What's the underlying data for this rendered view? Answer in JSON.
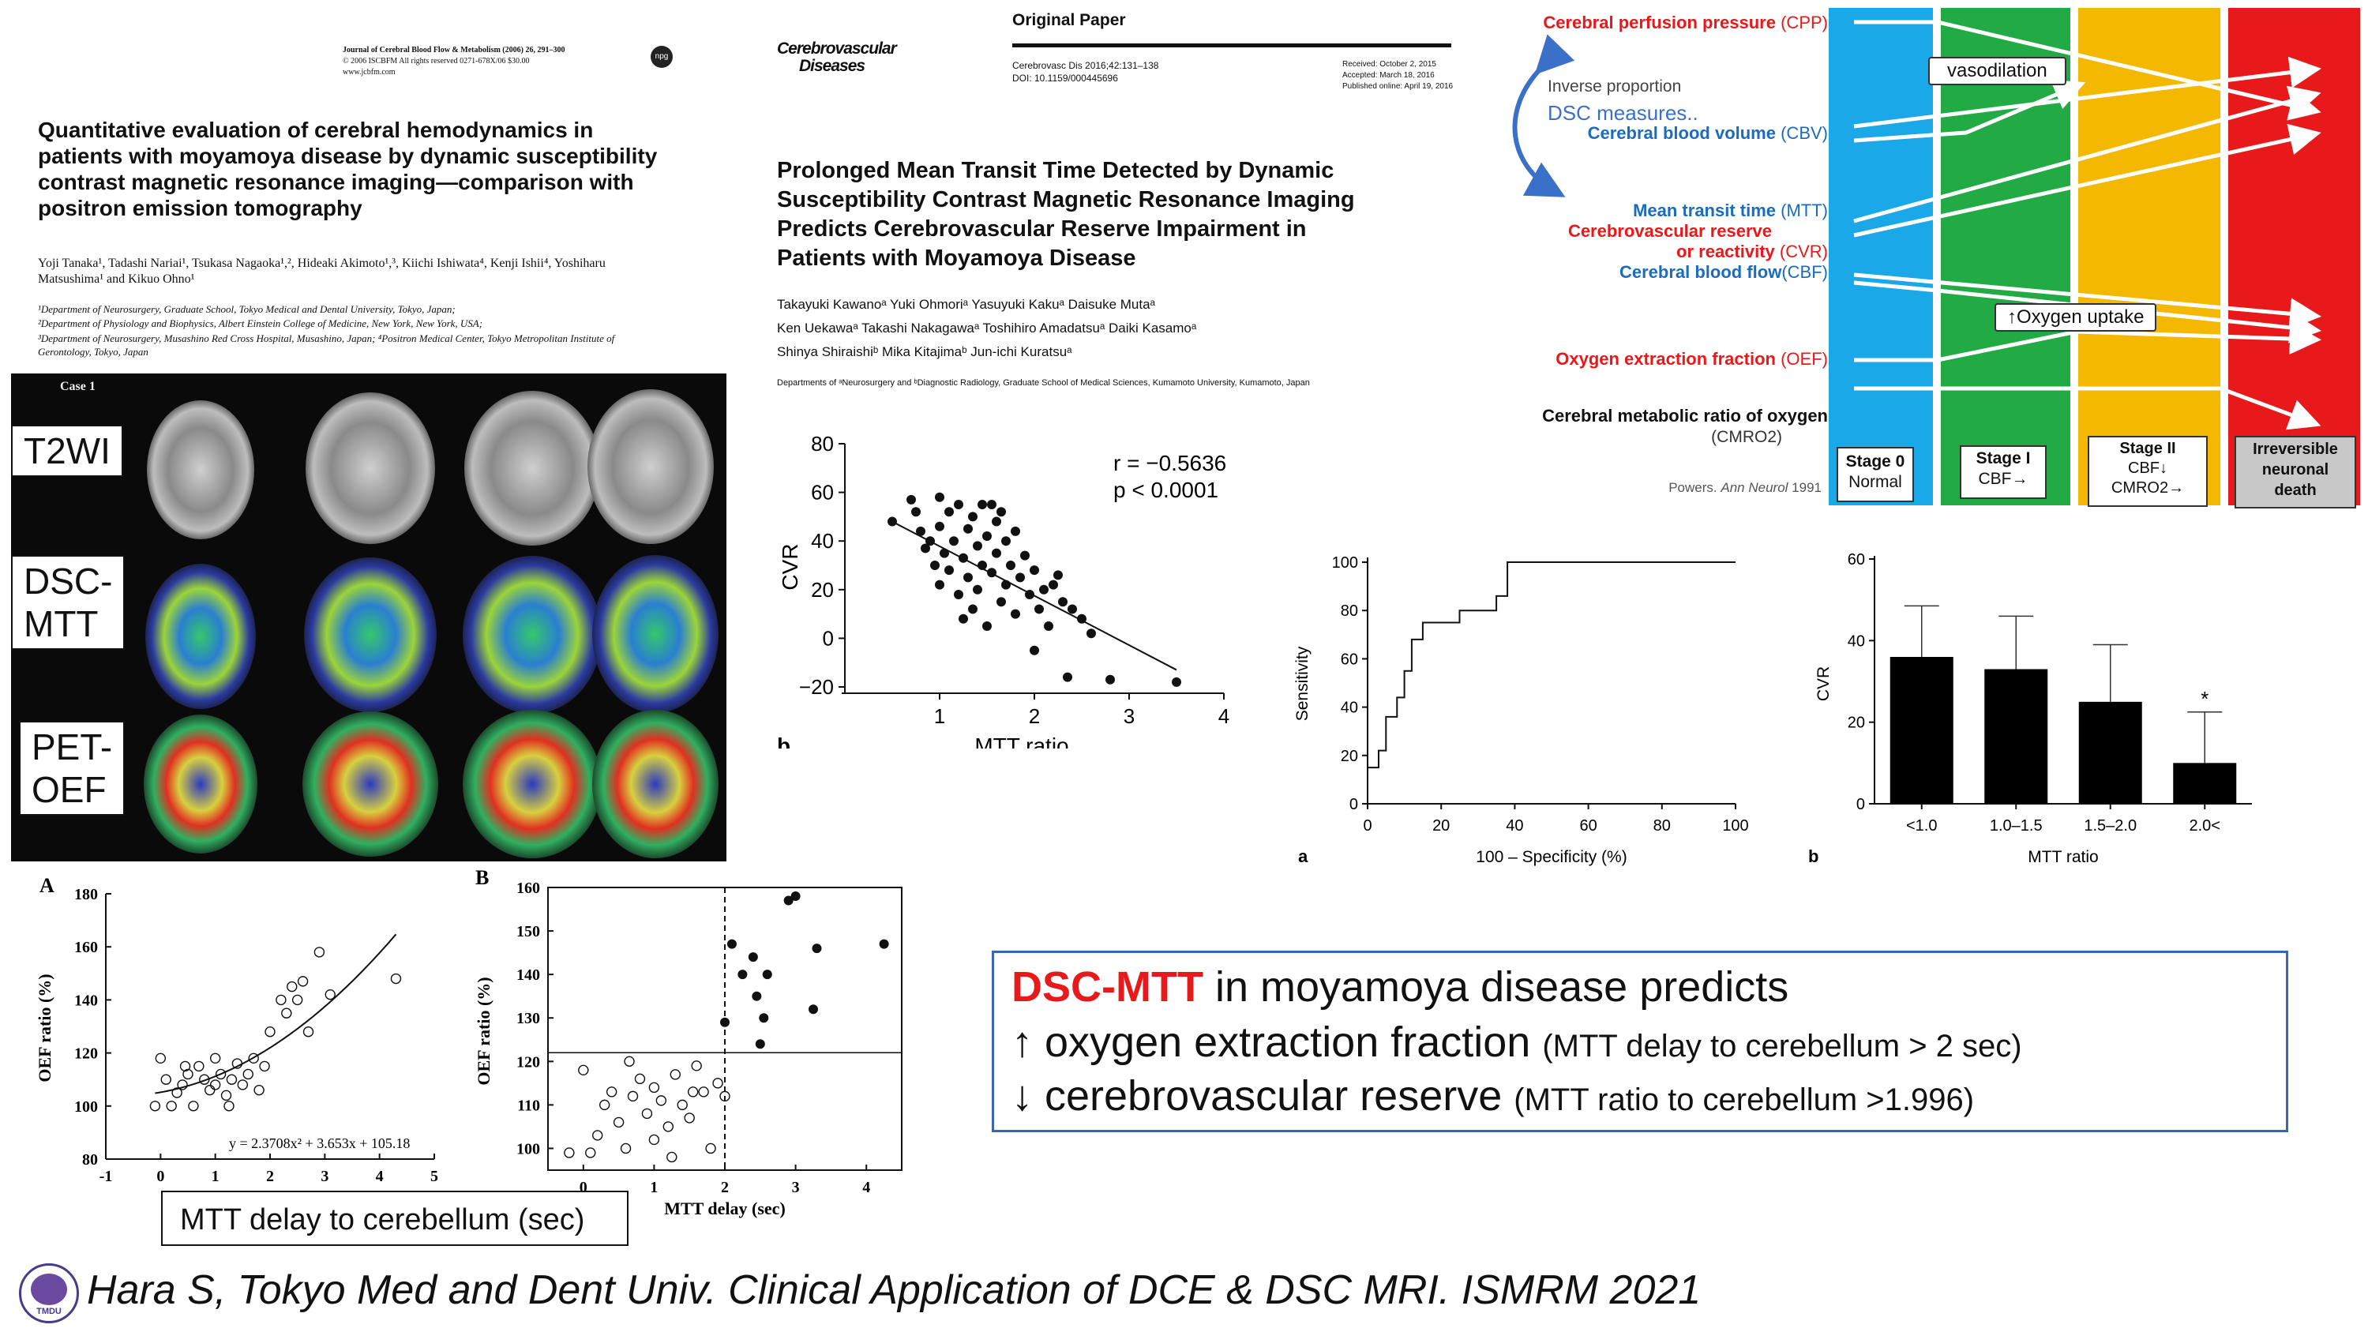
{
  "paper1": {
    "journal_line1": "Journal of Cerebral Blood Flow & Metabolism (2006) 26, 291–300",
    "journal_line2": "© 2006 ISCBFM All rights reserved 0271-678X/06 $30.00",
    "journal_line3": "www.jcbfm.com",
    "title": "Quantitative evaluation of cerebral hemodynamics in patients with moyamoya disease by dynamic susceptibility contrast magnetic resonance imaging—comparison with positron emission tomography",
    "authors": "Yoji Tanaka¹, Tadashi Nariai¹, Tsukasa Nagaoka¹,², Hideaki Akimoto¹,³, Kiichi Ishiwata⁴, Kenji Ishii⁴, Yoshiharu Matsushima¹ and Kikuo Ohno¹",
    "affil1": "¹Department of Neurosurgery, Graduate School, Tokyo Medical and Dental University, Tokyo, Japan;",
    "affil2": "²Department of Physiology and Biophysics, Albert Einstein College of Medicine, New York, New York, USA;",
    "affil3": "³Department of Neurosurgery, Musashino Red Cross Hospital, Musashino, Japan; ⁴Positron Medical Center, Tokyo Metropolitan Institute of Gerontology, Tokyo, Japan"
  },
  "mri": {
    "case_label": "Case 1",
    "row_labels": [
      "T2WI",
      "DSC-\nMTT",
      "PET-\nOEF"
    ]
  },
  "paper2": {
    "journal_name_line1": "Cerebrovascular",
    "journal_name_line2": "Diseases",
    "type": "Original Paper",
    "citation": "Cerebrovasc Dis 2016;42:131–138",
    "doi": "DOI: 10.1159/000445696",
    "received": "Received: October 2, 2015",
    "accepted": "Accepted: March 18, 2016",
    "published": "Published online: April 19, 2016",
    "title": "Prolonged Mean Transit Time Detected by Dynamic Susceptibility Contrast Magnetic Resonance Imaging Predicts Cerebrovascular Reserve Impairment in Patients with Moyamoya Disease",
    "authors_line1": "Takayuki Kawanoᵃ  Yuki Ohmoriᵃ  Yasuyuki Kakuᵃ  Daisuke Mutaᵃ",
    "authors_line2": "Ken Uekawaᵃ  Takashi Nakagawaᵃ  Toshihiro Amadatsuᵃ  Daiki Kasamoᵃ",
    "authors_line3": "Shinya Shiraishiᵇ  Mika Kitajimaᵇ  Jun-ichi Kuratsuᵃ",
    "depts": "Departments of ᵃNeurosurgery and ᵇDiagnostic Radiology, Graduate School of Medical Sciences, Kumamoto University, Kumamoto, Japan"
  },
  "chart_data": [
    {
      "id": "cvr-vs-mtt-ratio",
      "type": "scatter",
      "panel_label": "b",
      "xlabel": "MTT ratio",
      "ylabel": "CVR",
      "xticks": [
        "1",
        "2",
        "3",
        "4"
      ],
      "yticks": [
        "80",
        "60",
        "40",
        "20",
        "0",
        "−20"
      ],
      "xlim": [
        0,
        4
      ],
      "ylim": [
        -20,
        80
      ],
      "stat_r": "r = −0.5636",
      "stat_p": "p < 0.0001",
      "regression": {
        "x0": 0.5,
        "y0": 48,
        "x1": 3.5,
        "y1": -13
      },
      "points": [
        [
          0.5,
          48
        ],
        [
          0.7,
          57
        ],
        [
          0.75,
          52
        ],
        [
          0.8,
          44
        ],
        [
          0.85,
          37
        ],
        [
          0.9,
          40
        ],
        [
          0.95,
          30
        ],
        [
          1.0,
          46
        ],
        [
          1.0,
          22
        ],
        [
          1.05,
          35
        ],
        [
          1.1,
          52
        ],
        [
          1.1,
          28
        ],
        [
          1.15,
          40
        ],
        [
          1.2,
          18
        ],
        [
          1.2,
          55
        ],
        [
          1.25,
          33
        ],
        [
          1.3,
          45
        ],
        [
          1.3,
          25
        ],
        [
          1.35,
          50
        ],
        [
          1.35,
          12
        ],
        [
          1.4,
          38
        ],
        [
          1.4,
          20
        ],
        [
          1.45,
          55
        ],
        [
          1.45,
          30
        ],
        [
          1.5,
          42
        ],
        [
          1.5,
          5
        ],
        [
          1.55,
          27
        ],
        [
          1.6,
          35
        ],
        [
          1.6,
          48
        ],
        [
          1.65,
          15
        ],
        [
          1.7,
          40
        ],
        [
          1.7,
          22
        ],
        [
          1.75,
          30
        ],
        [
          1.8,
          10
        ],
        [
          1.85,
          25
        ],
        [
          1.9,
          34
        ],
        [
          1.95,
          18
        ],
        [
          2.0,
          28
        ],
        [
          2.05,
          12
        ],
        [
          2.1,
          20
        ],
        [
          2.15,
          5
        ],
        [
          2.2,
          22
        ],
        [
          2.3,
          15
        ],
        [
          2.4,
          12
        ],
        [
          2.5,
          8
        ],
        [
          2.6,
          2
        ],
        [
          1.25,
          8
        ],
        [
          1.55,
          55
        ],
        [
          1.65,
          52
        ],
        [
          2.0,
          -5
        ],
        [
          2.35,
          -16
        ],
        [
          2.8,
          -17
        ],
        [
          3.5,
          -18
        ],
        [
          1.0,
          58
        ],
        [
          1.8,
          44
        ],
        [
          2.25,
          26
        ]
      ]
    },
    {
      "id": "roc-curve",
      "type": "line",
      "panel_label": "a",
      "xlabel": "100 – Specificity (%)",
      "ylabel": "Sensitivity",
      "xticks": [
        "0",
        "20",
        "40",
        "60",
        "80",
        "100"
      ],
      "yticks": [
        "100",
        "80",
        "60",
        "40",
        "20",
        "0"
      ],
      "xlim": [
        0,
        100
      ],
      "ylim": [
        0,
        100
      ],
      "points": [
        [
          0,
          0
        ],
        [
          0,
          15
        ],
        [
          3,
          15
        ],
        [
          3,
          22
        ],
        [
          5,
          22
        ],
        [
          5,
          36
        ],
        [
          8,
          36
        ],
        [
          8,
          44
        ],
        [
          10,
          44
        ],
        [
          10,
          55
        ],
        [
          12,
          55
        ],
        [
          12,
          68
        ],
        [
          15,
          68
        ],
        [
          15,
          75
        ],
        [
          25,
          75
        ],
        [
          25,
          80
        ],
        [
          35,
          80
        ],
        [
          35,
          86
        ],
        [
          38,
          86
        ],
        [
          38,
          100
        ],
        [
          100,
          100
        ]
      ]
    },
    {
      "id": "cvr-by-mtt-ratio-bars",
      "type": "bar",
      "panel_label": "b",
      "xlabel": "MTT ratio",
      "ylabel": "CVR",
      "categories": [
        "<1.0",
        "1.0–1.5",
        "1.5–2.0",
        "2.0<"
      ],
      "values": [
        36,
        33,
        25,
        10
      ],
      "errors": [
        12.5,
        13,
        14,
        12.5
      ],
      "yticks": [
        "60",
        "40",
        "20",
        "0"
      ],
      "ylim": [
        0,
        60
      ],
      "annotation": "*"
    },
    {
      "id": "oef-vs-mtt-delay-scatter",
      "type": "scatter",
      "panel_label": "A",
      "xlabel": "MTT delay (sec)",
      "ylabel": "OEF ratio (%)",
      "xticks": [
        "-1",
        "0",
        "1",
        "2",
        "3",
        "4",
        "5"
      ],
      "yticks": [
        "180",
        "160",
        "140",
        "120",
        "100",
        "80"
      ],
      "xlim": [
        -1,
        5
      ],
      "ylim": [
        80,
        180
      ],
      "equation": "y = 2.3708x² + 3.653x + 105.18",
      "points": [
        [
          -0.1,
          100
        ],
        [
          0.1,
          110
        ],
        [
          0.2,
          100
        ],
        [
          0.3,
          105
        ],
        [
          0.4,
          108
        ],
        [
          0.5,
          112
        ],
        [
          0.6,
          100
        ],
        [
          0.7,
          115
        ],
        [
          0.8,
          110
        ],
        [
          0.9,
          106
        ],
        [
          1.0,
          108
        ],
        [
          1.0,
          118
        ],
        [
          1.1,
          112
        ],
        [
          1.2,
          104
        ],
        [
          1.3,
          110
        ],
        [
          1.4,
          116
        ],
        [
          1.5,
          108
        ],
        [
          1.6,
          112
        ],
        [
          1.7,
          118
        ],
        [
          1.8,
          106
        ],
        [
          2.0,
          128
        ],
        [
          2.2,
          140
        ],
        [
          2.3,
          135
        ],
        [
          2.4,
          145
        ],
        [
          2.5,
          140
        ],
        [
          2.6,
          147
        ],
        [
          2.7,
          128
        ],
        [
          2.9,
          158
        ],
        [
          3.1,
          142
        ],
        [
          4.3,
          148
        ],
        [
          0.0,
          118
        ],
        [
          0.45,
          115
        ],
        [
          1.25,
          100
        ],
        [
          1.9,
          115
        ]
      ]
    },
    {
      "id": "oef-vs-mtt-delay-threshold",
      "type": "scatter",
      "panel_label": "B",
      "xlabel": "MTT delay (sec)",
      "ylabel": "OEF ratio (%)",
      "xticks": [
        "0",
        "1",
        "2",
        "3",
        "4"
      ],
      "yticks": [
        "160",
        "150",
        "140",
        "130",
        "120",
        "110",
        "100"
      ],
      "xlim": [
        -0.5,
        4.5
      ],
      "ylim": [
        95,
        160
      ],
      "threshold_x": 2,
      "threshold_y": 122,
      "points_open": [
        [
          -0.2,
          99
        ],
        [
          0.0,
          118
        ],
        [
          0.1,
          99
        ],
        [
          0.2,
          103
        ],
        [
          0.3,
          110
        ],
        [
          0.4,
          113
        ],
        [
          0.5,
          106
        ],
        [
          0.6,
          100
        ],
        [
          0.7,
          112
        ],
        [
          0.8,
          116
        ],
        [
          0.9,
          108
        ],
        [
          1.0,
          102
        ],
        [
          1.0,
          114
        ],
        [
          1.1,
          111
        ],
        [
          1.2,
          105
        ],
        [
          1.3,
          117
        ],
        [
          1.4,
          110
        ],
        [
          1.5,
          107
        ],
        [
          1.6,
          119
        ],
        [
          1.7,
          113
        ],
        [
          1.8,
          100
        ],
        [
          1.9,
          115
        ],
        [
          2.0,
          112
        ],
        [
          0.65,
          120
        ],
        [
          1.25,
          98
        ],
        [
          1.55,
          113
        ]
      ],
      "points_filled": [
        [
          2.0,
          129
        ],
        [
          2.1,
          147
        ],
        [
          2.25,
          140
        ],
        [
          2.4,
          144
        ],
        [
          2.45,
          135
        ],
        [
          2.5,
          124
        ],
        [
          2.55,
          130
        ],
        [
          2.6,
          140
        ],
        [
          2.9,
          157
        ],
        [
          3.0,
          158
        ],
        [
          3.25,
          132
        ],
        [
          3.3,
          146
        ],
        [
          4.25,
          147
        ]
      ]
    }
  ],
  "hemo": {
    "cpp_label": "Cerebral perfusion pressure",
    "cpp_abbr": "(CPP)",
    "inverse": "Inverse proportion",
    "dsc_measures": "DSC measures..",
    "cbv_label": "Cerebral blood volume",
    "cbv_abbr": "(CBV)",
    "mtt_label": "Mean transit time",
    "mtt_abbr": "(MTT)",
    "cvr_label1": "Cerebrovascular reserve",
    "cvr_label2": "or reactivity",
    "cvr_abbr": "(CVR)",
    "cbf_label": "Cerebral blood flow",
    "cbf_abbr": "(CBF)",
    "oef_label": "Oxygen extraction fraction",
    "oef_abbr": "(OEF)",
    "cmro2_label": "Cerebral metabolic ratio of oxygen",
    "cmro2_abbr": "(CMRO2)",
    "vasodilation": "vasodilation",
    "oxygen_uptake": "↑Oxygen uptake",
    "citation_prefix": "Powers.",
    "citation_journal": "Ann Neurol",
    "citation_year": "1991",
    "stages": [
      {
        "title": "Stage 0",
        "sub1": "Normal",
        "sub2": ""
      },
      {
        "title": "Stage I",
        "sub1": "CBF→",
        "sub2": ""
      },
      {
        "title": "Stage II",
        "sub1": "CBF↓",
        "sub2": "CMRO2→"
      },
      {
        "title": "Irreversible",
        "sub1": "neuronal",
        "sub2": "death"
      }
    ],
    "colors": {
      "stage0": "#1aa8e8",
      "stage1": "#22aa44",
      "stage2": "#f5b800",
      "stage3": "#e8191a"
    }
  },
  "summary": {
    "highlight": "DSC-MTT",
    "line1_rest": " in moyamoya disease predicts",
    "line2_main": "↑ oxygen extraction fraction ",
    "line2_note": "(MTT delay to cerebellum > 2 sec)",
    "line3_main": "↓ cerebrovascular reserve ",
    "line3_note": "(MTT ratio to cerebellum >1.996)",
    "accent_color": "#e8191a",
    "border_color": "#3a64b4"
  },
  "mtt_delay_caption": "MTT delay to cerebellum (sec)",
  "footer": {
    "citation": "Hara S, Tokyo Med and Dent Univ. Clinical Application of DCE & DSC MRI. ISMRM 2021",
    "logo_text": "TMDU"
  }
}
